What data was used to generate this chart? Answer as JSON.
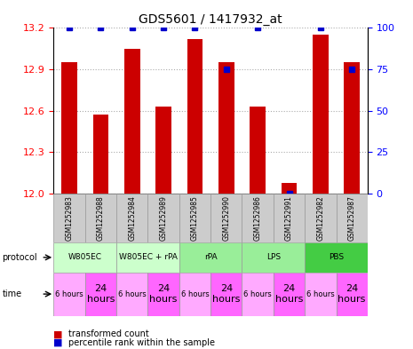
{
  "title": "GDS5601 / 1417932_at",
  "samples": [
    "GSM1252983",
    "GSM1252988",
    "GSM1252984",
    "GSM1252989",
    "GSM1252985",
    "GSM1252990",
    "GSM1252986",
    "GSM1252991",
    "GSM1252982",
    "GSM1252987"
  ],
  "transformed_counts": [
    12.95,
    12.57,
    13.05,
    12.63,
    13.12,
    12.95,
    12.63,
    12.08,
    13.15,
    12.95
  ],
  "percentile_ranks": [
    100,
    100,
    100,
    100,
    100,
    75,
    100,
    0,
    100,
    75
  ],
  "ylim_left": [
    12,
    13.2
  ],
  "ylim_right": [
    0,
    100
  ],
  "yticks_left": [
    12,
    12.3,
    12.6,
    12.9,
    13.2
  ],
  "yticks_right": [
    0,
    25,
    50,
    75,
    100
  ],
  "protocols": [
    {
      "label": "W805EC",
      "span": [
        0,
        2
      ],
      "color": "#ccffcc"
    },
    {
      "label": "W805EC + rPA",
      "span": [
        2,
        4
      ],
      "color": "#ccffcc"
    },
    {
      "label": "rPA",
      "span": [
        4,
        6
      ],
      "color": "#99ee99"
    },
    {
      "label": "LPS",
      "span": [
        6,
        8
      ],
      "color": "#99ee99"
    },
    {
      "label": "PBS",
      "span": [
        8,
        10
      ],
      "color": "#44cc44"
    }
  ],
  "times": [
    "6 hours",
    "24\nhours",
    "6 hours",
    "24\nhours",
    "6 hours",
    "24\nhours",
    "6 hours",
    "24\nhours",
    "6 hours",
    "24\nhours"
  ],
  "time_colors_6h": "#ffaaff",
  "time_colors_24h": "#ff66ff",
  "bar_color": "#cc0000",
  "percentile_color": "#0000cc",
  "grid_color": "#aaaaaa",
  "sample_bg_color": "#cccccc",
  "sample_border_color": "#999999",
  "fig_width": 4.65,
  "fig_height": 3.93,
  "dpi": 100
}
